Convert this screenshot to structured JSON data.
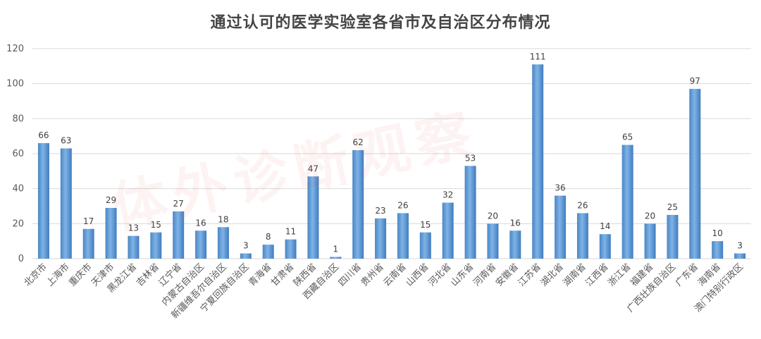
{
  "chart_data": {
    "type": "bar",
    "title": "通过认可的医学实验室各省市及自治区分布情况",
    "xlabel": "",
    "ylabel": "",
    "ylim": [
      0,
      120
    ],
    "yticks": [
      0,
      20,
      40,
      60,
      80,
      100,
      120
    ],
    "grid": true,
    "categories": [
      "北京市",
      "上海市",
      "重庆市",
      "天津市",
      "黑龙江省",
      "吉林省",
      "辽宁省",
      "内蒙古自治区",
      "新疆维吾尔自治区",
      "宁夏回族自治区",
      "青海省",
      "甘肃省",
      "陕西省",
      "西藏自治区",
      "四川省",
      "贵州省",
      "云南省",
      "山西省",
      "河北省",
      "山东省",
      "河南省",
      "安徽省",
      "江苏省",
      "湖北省",
      "湖南省",
      "江西省",
      "浙江省",
      "福建省",
      "广西壮族自治区",
      "广东省",
      "海南省",
      "澳门特别行政区"
    ],
    "values": [
      66,
      63,
      17,
      29,
      13,
      15,
      27,
      16,
      18,
      3,
      8,
      11,
      47,
      1,
      62,
      23,
      26,
      15,
      32,
      53,
      20,
      16,
      111,
      36,
      26,
      14,
      65,
      20,
      25,
      97,
      10,
      3
    ],
    "bar_color": "#5b9bd5",
    "watermark": "体外诊断观察"
  }
}
